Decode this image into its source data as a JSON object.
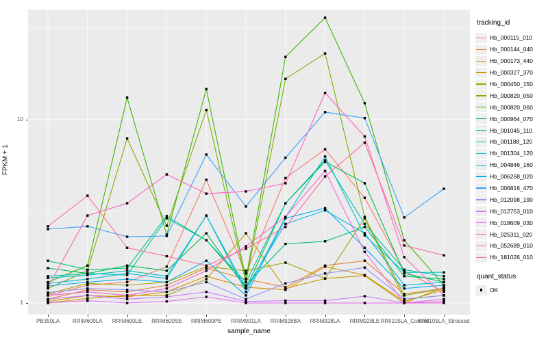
{
  "chart_data": {
    "type": "line",
    "title": "",
    "xlabel": "sample_name",
    "ylabel": "FPKM + 1",
    "y_scale": "log10",
    "y_axis_ticks": [
      1,
      10
    ],
    "y_minor_gridlines": [
      3.1623,
      31.623
    ],
    "ylim_approx": [
      0.95,
      40
    ],
    "grid": "on",
    "panel_background": "#EBEBEB",
    "gridline_color": "#FFFFFF",
    "point_shape": "black-square",
    "legend_position": "right",
    "legend_title": "tracking_id",
    "point_legend": {
      "title": "quant_status",
      "label": "OK"
    },
    "categories": [
      "PB350LA",
      "RRIM600LA",
      "RRIM600LE",
      "RRIM600SE",
      "RRIM600PE",
      "RRIM901LA",
      "RRIM928BA",
      "RRIM928LA",
      "RRIM928LE",
      "RRII105LA_Control",
      "RRII105LA_Stressed"
    ],
    "series": [
      {
        "name": "Hb_000115_010",
        "color": "#F8766D",
        "values": [
          1.1,
          1.25,
          1.3,
          1.58,
          4.7,
          1.45,
          4.8,
          6.9,
          3.75,
          1.5,
          1.15
        ]
      },
      {
        "name": "Hb_000144_040",
        "color": "#EA8331",
        "values": [
          1.05,
          1.18,
          1.15,
          1.25,
          1.55,
          1.35,
          1.22,
          1.6,
          1.7,
          1.12,
          1.2
        ]
      },
      {
        "name": "Hb_000173_440",
        "color": "#D89000",
        "values": [
          1.02,
          1.1,
          1.08,
          1.15,
          1.4,
          1.22,
          1.18,
          1.58,
          1.42,
          1.02,
          1.18
        ]
      },
      {
        "name": "Hb_000327_370",
        "color": "#C09B00",
        "values": [
          1.0,
          1.06,
          1.1,
          1.1,
          1.35,
          2.4,
          1.2,
          1.36,
          1.41,
          1.0,
          1.22
        ]
      },
      {
        "name": "Hb_000450_150",
        "color": "#A3A500",
        "values": [
          1.12,
          1.28,
          1.25,
          1.3,
          1.58,
          1.5,
          1.66,
          1.36,
          2.9,
          1.05,
          1.1
        ]
      },
      {
        "name": "Hb_000820_050",
        "color": "#7CAE00",
        "values": [
          1.2,
          1.5,
          7.9,
          2.64,
          11.3,
          1.3,
          16.7,
          23.0,
          2.95,
          1.1,
          1.2
        ]
      },
      {
        "name": "Hb_000820_060",
        "color": "#39B600",
        "values": [
          1.3,
          1.6,
          13.2,
          2.36,
          14.7,
          1.35,
          22.0,
          36.0,
          12.3,
          2.2,
          1.25
        ]
      },
      {
        "name": "Hb_000964_070",
        "color": "#00BB4E",
        "values": [
          1.55,
          1.45,
          1.6,
          1.5,
          2.4,
          1.2,
          3.5,
          5.9,
          4.5,
          1.45,
          1.3
        ]
      },
      {
        "name": "Hb_001045_110",
        "color": "#00BF7D",
        "values": [
          1.7,
          1.52,
          1.55,
          2.98,
          2.2,
          1.25,
          2.1,
          2.17,
          2.6,
          1.4,
          1.35
        ]
      },
      {
        "name": "Hb_001188_120",
        "color": "#00C1A3",
        "values": [
          1.4,
          1.45,
          1.42,
          2.9,
          2.2,
          1.3,
          3.5,
          6.0,
          2.7,
          1.52,
          1.4
        ]
      },
      {
        "name": "Hb_001304_120",
        "color": "#00BFC4",
        "values": [
          1.37,
          1.42,
          1.5,
          1.4,
          3.0,
          1.15,
          2.94,
          6.3,
          2.34,
          1.47,
          1.47
        ]
      },
      {
        "name": "Hb_004846_160",
        "color": "#00BAE0",
        "values": [
          1.28,
          1.35,
          1.45,
          1.36,
          3.0,
          1.2,
          2.7,
          3.2,
          2.4,
          1.25,
          1.3
        ]
      },
      {
        "name": "Hb_006268_020",
        "color": "#00B0F6",
        "values": [
          1.24,
          1.3,
          1.35,
          1.3,
          1.7,
          1.1,
          2.9,
          3.29,
          2.0,
          1.2,
          1.25
        ]
      },
      {
        "name": "Hb_006816_470",
        "color": "#35A2FF",
        "values": [
          2.53,
          2.62,
          2.3,
          2.32,
          6.45,
          3.36,
          6.2,
          11.0,
          10.2,
          2.93,
          4.2
        ]
      },
      {
        "name": "Hb_012098_190",
        "color": "#9590FF",
        "values": [
          1.14,
          1.2,
          1.18,
          1.15,
          1.3,
          1.05,
          1.28,
          1.45,
          1.56,
          1.05,
          1.1
        ]
      },
      {
        "name": "Hb_012753_010",
        "color": "#C77CFF",
        "values": [
          1.05,
          1.1,
          1.05,
          1.08,
          1.15,
          1.02,
          1.03,
          1.03,
          1.09,
          1.0,
          1.05
        ]
      },
      {
        "name": "Hb_018609_030",
        "color": "#E76BF3",
        "values": [
          1.0,
          1.03,
          1.0,
          1.02,
          1.08,
          1.0,
          1.0,
          1.0,
          1.0,
          1.0,
          1.0
        ]
      },
      {
        "name": "Hb_025311_020",
        "color": "#FA62DB",
        "values": [
          1.1,
          1.15,
          1.1,
          1.2,
          1.5,
          2.04,
          2.95,
          5.25,
          1.9,
          1.0,
          1.02
        ]
      },
      {
        "name": "Hb_052689_010",
        "color": "#FF62BC",
        "values": [
          1.22,
          3.0,
          3.5,
          5.03,
          3.95,
          4.06,
          4.5,
          14.0,
          8.1,
          1.78,
          1.1
        ]
      },
      {
        "name": "Hb_181026_010",
        "color": "#FF6A98",
        "values": [
          2.62,
          3.85,
          2.0,
          1.8,
          1.6,
          1.98,
          2.6,
          4.9,
          7.5,
          2.06,
          1.82
        ]
      }
    ]
  }
}
